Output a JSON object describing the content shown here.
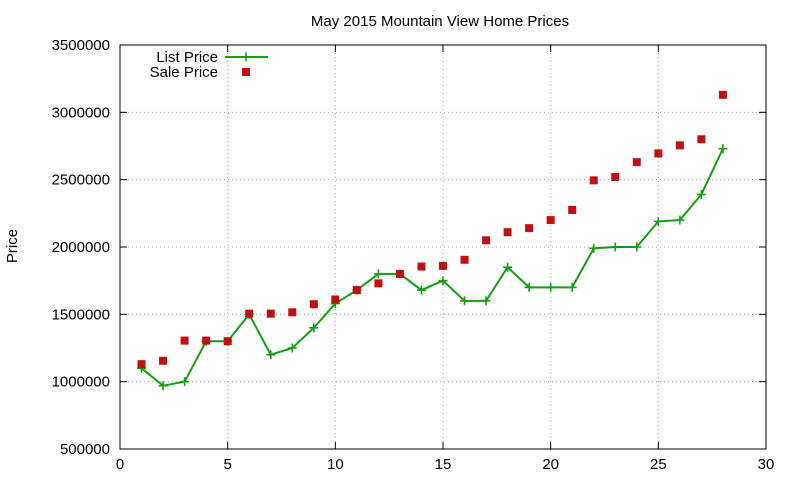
{
  "chart_data": {
    "type": "line",
    "title": "May 2015 Mountain View Home Prices",
    "xlabel": "",
    "ylabel": "Price",
    "xlim": [
      0,
      30
    ],
    "ylim": [
      500000,
      3500000
    ],
    "x_ticks": [
      0,
      5,
      10,
      15,
      20,
      25,
      30
    ],
    "y_ticks": [
      500000,
      1000000,
      1500000,
      2000000,
      2500000,
      3000000,
      3500000
    ],
    "x_tick_labels": [
      "0",
      "5",
      "10",
      "15",
      "20",
      "25",
      "30"
    ],
    "y_tick_labels": [
      "500000",
      "1000000",
      "1500000",
      "2000000",
      "2500000",
      "3000000",
      "3500000"
    ],
    "grid": true,
    "legend_position": "top-left",
    "series": [
      {
        "name": "List Price",
        "style": "line-points",
        "marker": "plus",
        "color": "#11a011",
        "x": [
          1,
          2,
          3,
          4,
          5,
          6,
          7,
          8,
          9,
          10,
          11,
          12,
          13,
          14,
          15,
          16,
          17,
          18,
          19,
          20,
          21,
          22,
          23,
          24,
          25,
          26,
          27,
          28
        ],
        "y": [
          1100000,
          970000,
          1000000,
          1300000,
          1300000,
          1500000,
          1200000,
          1250000,
          1400000,
          1580000,
          1680000,
          1800000,
          1800000,
          1680000,
          1750000,
          1600000,
          1600000,
          1850000,
          1700000,
          1700000,
          1700000,
          1990000,
          2000000,
          2000000,
          2190000,
          2200000,
          2390000,
          2730000
        ]
      },
      {
        "name": "Sale Price",
        "style": "points",
        "marker": "square",
        "color": "#c0100f",
        "x": [
          1,
          2,
          3,
          4,
          5,
          6,
          7,
          8,
          9,
          10,
          11,
          12,
          13,
          14,
          15,
          16,
          17,
          18,
          19,
          20,
          21,
          22,
          23,
          24,
          25,
          26,
          27,
          28
        ],
        "y": [
          1130000,
          1155000,
          1305000,
          1305000,
          1300000,
          1505000,
          1505000,
          1515000,
          1575000,
          1610000,
          1680000,
          1730000,
          1800000,
          1855000,
          1860000,
          1905000,
          2050000,
          2110000,
          2140000,
          2200000,
          2275000,
          2495000,
          2520000,
          2630000,
          2695000,
          2755000,
          2800000,
          3130000
        ]
      }
    ]
  }
}
